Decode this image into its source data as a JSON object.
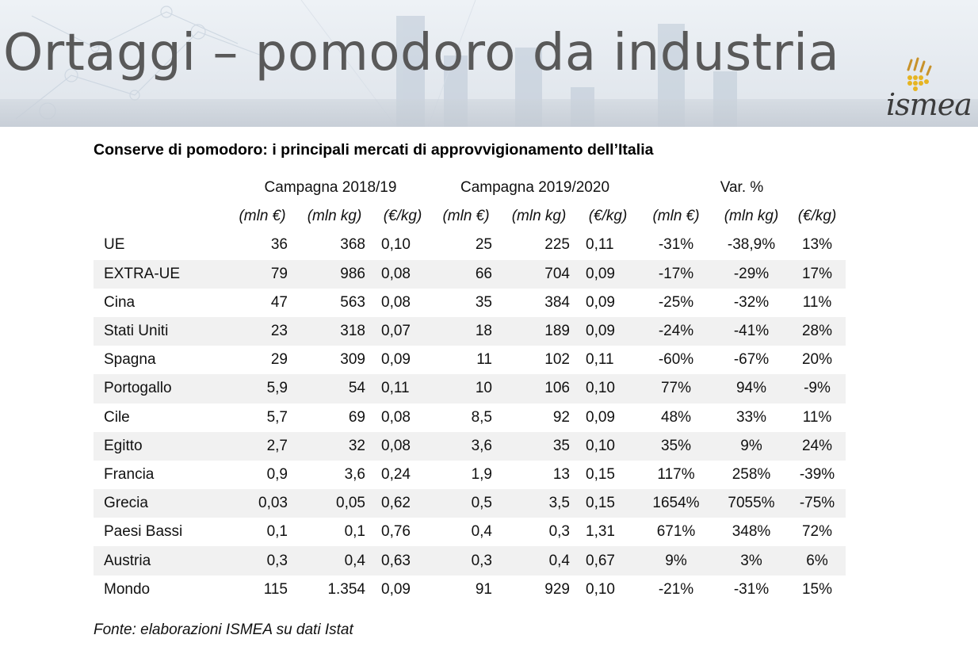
{
  "header": {
    "title": "Ortaggi – pomodoro da industria",
    "logo_text": "ismea"
  },
  "colors": {
    "title": "#595959",
    "shade_row": "#f1f1f1",
    "logo_accent": "#e6b422"
  },
  "table": {
    "subtitle": "Conserve di pomodoro: i principali mercati di approvvigionamento dell’Italia",
    "groups": [
      "Campagna 2018/19",
      "Campagna 2019/2020",
      "Var. %"
    ],
    "units": [
      "(mln €)",
      "(mln kg)",
      "(€/kg)",
      "(mln €)",
      "(mln kg)",
      "(€/kg)",
      "(mln €)",
      "(mln kg)",
      "(€/kg)"
    ],
    "rows": [
      {
        "label": "UE",
        "cells": [
          "36",
          "368",
          "0,10",
          "25",
          "225",
          "0,11",
          "-31%",
          "-38,9%",
          "13%"
        ]
      },
      {
        "label": "EXTRA-UE",
        "cells": [
          "79",
          "986",
          "0,08",
          "66",
          "704",
          "0,09",
          "-17%",
          "-29%",
          "17%"
        ]
      },
      {
        "label": "Cina",
        "cells": [
          "47",
          "563",
          "0,08",
          "35",
          "384",
          "0,09",
          "-25%",
          "-32%",
          "11%"
        ]
      },
      {
        "label": "Stati Uniti",
        "cells": [
          "23",
          "318",
          "0,07",
          "18",
          "189",
          "0,09",
          "-24%",
          "-41%",
          "28%"
        ]
      },
      {
        "label": "Spagna",
        "cells": [
          "29",
          "309",
          "0,09",
          "11",
          "102",
          "0,11",
          "-60%",
          "-67%",
          "20%"
        ]
      },
      {
        "label": "Portogallo",
        "cells": [
          "5,9",
          "54",
          "0,11",
          "10",
          "106",
          "0,10",
          "77%",
          "94%",
          "-9%"
        ]
      },
      {
        "label": "Cile",
        "cells": [
          "5,7",
          "69",
          "0,08",
          "8,5",
          "92",
          "0,09",
          "48%",
          "33%",
          "11%"
        ]
      },
      {
        "label": "Egitto",
        "cells": [
          "2,7",
          "32",
          "0,08",
          "3,6",
          "35",
          "0,10",
          "35%",
          "9%",
          "24%"
        ]
      },
      {
        "label": "Francia",
        "cells": [
          "0,9",
          "3,6",
          "0,24",
          "1,9",
          "13",
          "0,15",
          "117%",
          "258%",
          "-39%"
        ]
      },
      {
        "label": "Grecia",
        "cells": [
          "0,03",
          "0,05",
          "0,62",
          "0,5",
          "3,5",
          "0,15",
          "1654%",
          "7055%",
          "-75%"
        ]
      },
      {
        "label": "Paesi Bassi",
        "cells": [
          "0,1",
          "0,1",
          "0,76",
          "0,4",
          "0,3",
          "1,31",
          "671%",
          "348%",
          "72%"
        ]
      },
      {
        "label": "Austria",
        "cells": [
          "0,3",
          "0,4",
          "0,63",
          "0,3",
          "0,4",
          "0,67",
          "9%",
          "3%",
          "6%"
        ]
      },
      {
        "label": "Mondo",
        "cells": [
          "115",
          "1.354",
          "0,09",
          "91",
          "929",
          "0,10",
          "-21%",
          "-31%",
          "15%"
        ]
      }
    ],
    "source": "Fonte: elaborazioni ISMEA su dati Istat"
  }
}
